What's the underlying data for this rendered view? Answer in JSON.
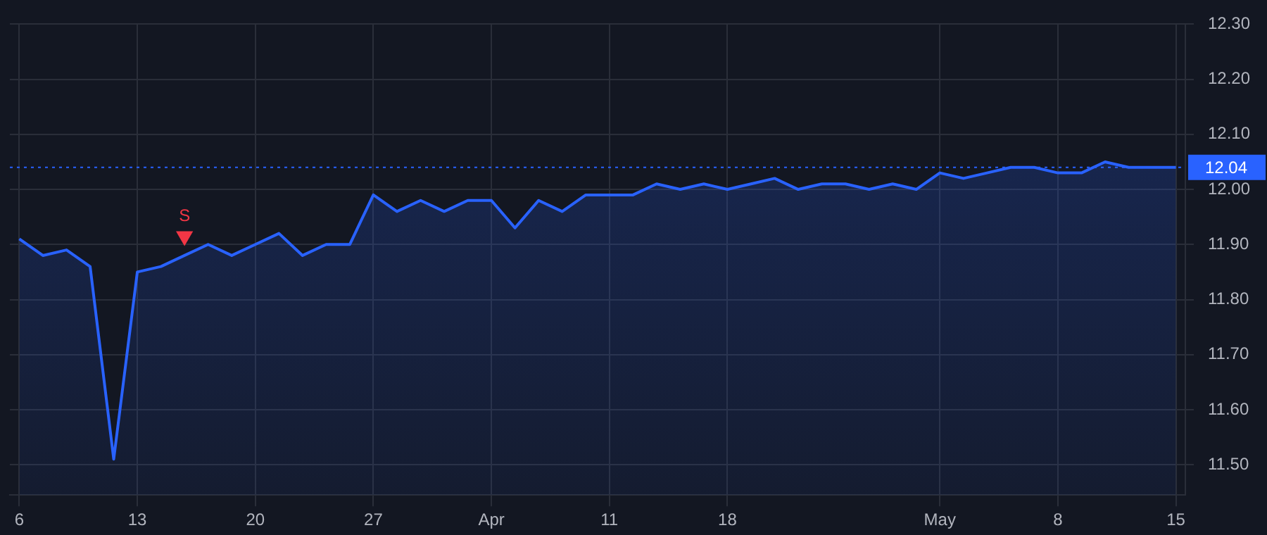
{
  "chart_data": {
    "type": "area",
    "categories": [
      "6",
      null,
      null,
      null,
      null,
      "13",
      null,
      null,
      null,
      null,
      "20",
      null,
      null,
      null,
      null,
      "27",
      null,
      null,
      null,
      null,
      "Apr",
      null,
      null,
      null,
      null,
      "11",
      null,
      null,
      null,
      null,
      "18",
      null,
      null,
      null,
      null,
      null,
      null,
      null,
      null,
      "May",
      null,
      null,
      null,
      null,
      "8",
      null,
      null,
      null,
      null,
      "15"
    ],
    "series": [
      {
        "color": "#2962ff",
        "values": [
          11.91,
          11.88,
          11.89,
          11.86,
          11.51,
          11.85,
          11.86,
          11.88,
          11.9,
          11.88,
          11.9,
          11.92,
          11.88,
          11.9,
          11.9,
          11.99,
          11.96,
          11.98,
          11.96,
          11.98,
          11.98,
          11.93,
          11.98,
          11.96,
          11.99,
          11.99,
          11.99,
          12.01,
          12.0,
          12.01,
          12.0,
          12.01,
          12.02,
          12.0,
          12.01,
          12.01,
          12.0,
          12.01,
          12.0,
          12.03,
          12.02,
          12.03,
          12.04,
          12.04,
          12.03,
          12.03,
          12.05,
          12.04,
          12.04,
          12.04
        ]
      },
      {
        "type": "scatter",
        "name": "S",
        "color": "#f23645",
        "marker": "triangle",
        "values": [
          null,
          null,
          null,
          null,
          null,
          null,
          null,
          11.915,
          null,
          null,
          null,
          null,
          null,
          null,
          null,
          null,
          null,
          null,
          null,
          null,
          null,
          null,
          null,
          null,
          null,
          null,
          null,
          null,
          null,
          null,
          null,
          null,
          null,
          null,
          null,
          null,
          null,
          null,
          null,
          null,
          null,
          null,
          null,
          null,
          null,
          null,
          null,
          null,
          null,
          null
        ]
      }
    ],
    "ylim": [
      11.445,
      12.3
    ],
    "yticks": [
      {
        "value": 11.5,
        "label": "11.50"
      },
      {
        "value": 11.6,
        "label": "11.60"
      },
      {
        "value": 11.7,
        "label": "11.70"
      },
      {
        "value": 11.8,
        "label": "11.80"
      },
      {
        "value": 11.9,
        "label": "11.90"
      },
      {
        "value": 12.0,
        "label": "12.00"
      },
      {
        "value": 12.1,
        "label": "12.10"
      },
      {
        "value": 12.2,
        "label": "12.20"
      },
      {
        "value": 12.3,
        "label": "12.30"
      }
    ],
    "ref_lines": [
      {
        "axis": "y",
        "value": 12.04,
        "label": "12.04",
        "color": "#2962ff",
        "line_style": "dotted"
      }
    ],
    "grid": true,
    "legend": false,
    "line_style": "solid"
  }
}
